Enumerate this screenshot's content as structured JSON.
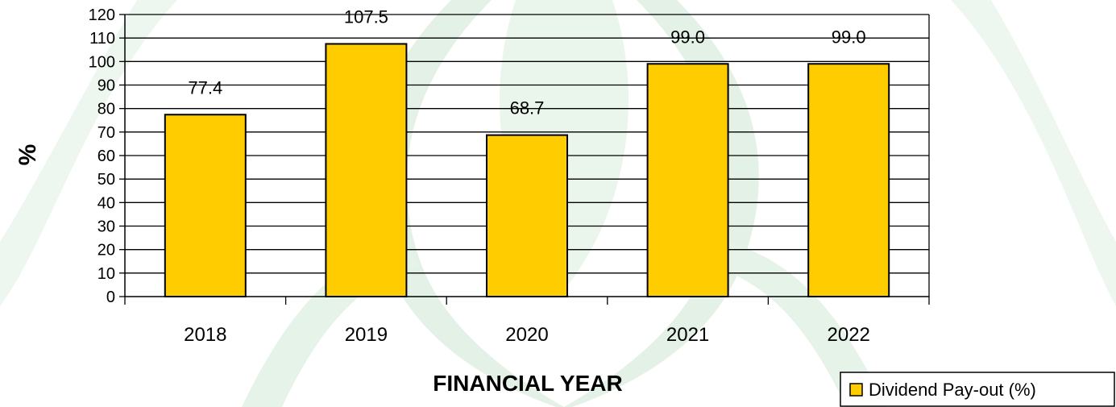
{
  "chart_data": {
    "type": "bar",
    "categories": [
      "2018",
      "2019",
      "2020",
      "2021",
      "2022"
    ],
    "series": [
      {
        "name": "Dividend Pay-out (%)",
        "values": [
          77.4,
          107.5,
          68.7,
          99.0,
          99.0
        ],
        "data_labels": [
          "77.4",
          "107.5",
          "68.7",
          "99.0",
          "99.0"
        ],
        "color": "#FFCC00"
      }
    ],
    "title": "",
    "xlabel": "FINANCIAL YEAR",
    "ylabel": "%",
    "ylim": [
      0,
      120
    ],
    "yticks": [
      0,
      10,
      20,
      30,
      40,
      50,
      60,
      70,
      80,
      90,
      100,
      110,
      120
    ],
    "grid": true,
    "legend_position": "bottom-right",
    "colors": {
      "bar_fill": "#FFCC00",
      "bar_stroke": "#000000",
      "grid": "#000000",
      "background_watermark": "#E3F1E6"
    }
  }
}
